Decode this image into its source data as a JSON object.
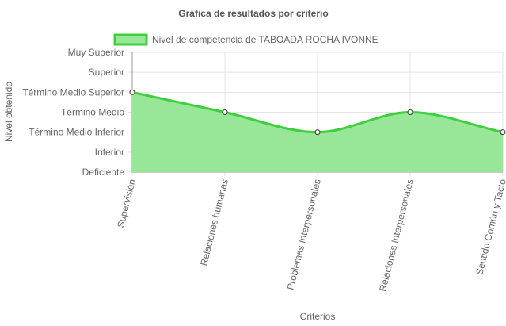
{
  "chart_data": {
    "type": "area",
    "title": "Gráfica de resultados por criterio",
    "xlabel": "Criterios",
    "ylabel": "Nivel obtenido",
    "categories": [
      "Supervisión",
      "Relaciones humanas",
      "Problemas Interpersonales",
      "Relaciones Interpersonales",
      "Sentido Común y Tacto"
    ],
    "y_levels": [
      "Deficiente",
      "Inferior",
      "Término Medio Inferior",
      "Término Medio",
      "Término Medio Superior",
      "Superior",
      "Muy Superior"
    ],
    "ylim": [
      0,
      6
    ],
    "series": [
      {
        "name": "Nivel de competencia de TABOADA ROCHA  IVONNE",
        "values": [
          4,
          3,
          2,
          3,
          2
        ]
      }
    ],
    "grid": true,
    "legend": "top-center",
    "colors": {
      "line": "#3ecf3e",
      "fill": "#98e698",
      "point_fill": "#ffffff",
      "point_stroke": "#333333",
      "grid": "#e5e5e5",
      "axis": "#999999"
    }
  }
}
